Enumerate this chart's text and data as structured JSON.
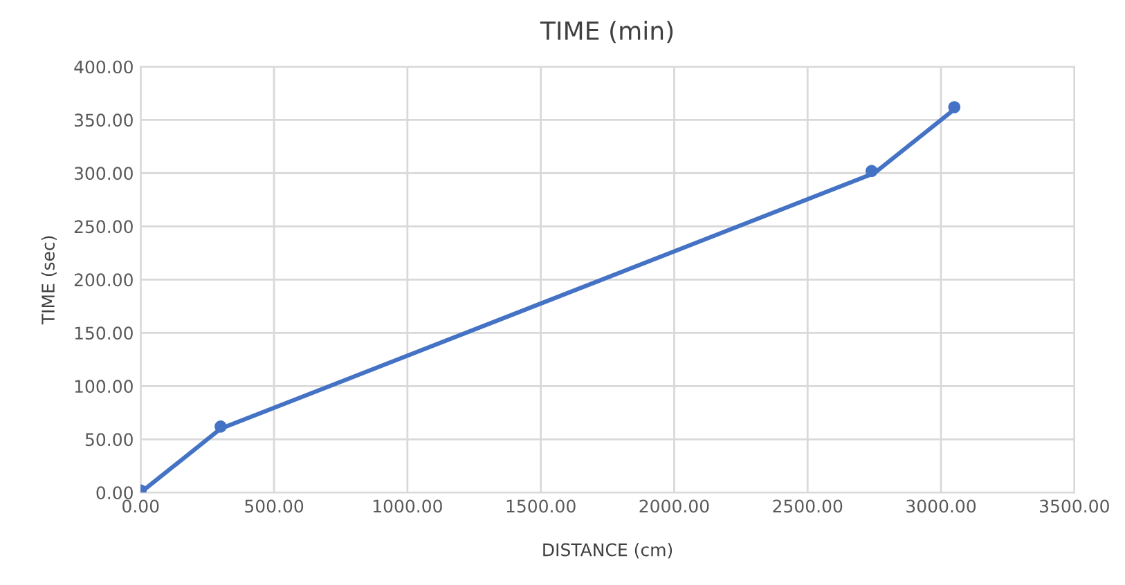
{
  "chart_data": {
    "type": "scatter",
    "title": "TIME (min)",
    "xlabel": "DISTANCE (cm)",
    "ylabel": "TIME (sec)",
    "series": [
      {
        "color": "#4472c4",
        "x": [
          0,
          300,
          2740,
          3050
        ],
        "values": [
          2,
          62,
          302,
          362
        ],
        "marker": "circle"
      },
      {
        "type": "line",
        "color": "#4472c4",
        "x": [
          0,
          300,
          2750,
          3050
        ],
        "values": [
          0,
          60,
          300,
          360
        ],
        "marker": "none",
        "line_style": "solid"
      }
    ],
    "xlim": [
      0,
      3500
    ],
    "ylim": [
      0,
      400
    ],
    "xticks": [
      {
        "value": 0,
        "label": "0.00"
      },
      {
        "value": 500,
        "label": "500.00"
      },
      {
        "value": 1000,
        "label": "1000.00"
      },
      {
        "value": 1500,
        "label": "1500.00"
      },
      {
        "value": 2000,
        "label": "2000.00"
      },
      {
        "value": 2500,
        "label": "2500.00"
      },
      {
        "value": 3000,
        "label": "3000.00"
      },
      {
        "value": 3500,
        "label": "3500.00"
      }
    ],
    "yticks": [
      {
        "value": 0,
        "label": "0.00"
      },
      {
        "value": 50,
        "label": "50.00"
      },
      {
        "value": 100,
        "label": "100.00"
      },
      {
        "value": 150,
        "label": "150.00"
      },
      {
        "value": 200,
        "label": "200.00"
      },
      {
        "value": 250,
        "label": "250.00"
      },
      {
        "value": 300,
        "label": "300.00"
      },
      {
        "value": 350,
        "label": "350.00"
      },
      {
        "value": 400,
        "label": "400.00"
      }
    ],
    "grid": true,
    "legend": false
  }
}
